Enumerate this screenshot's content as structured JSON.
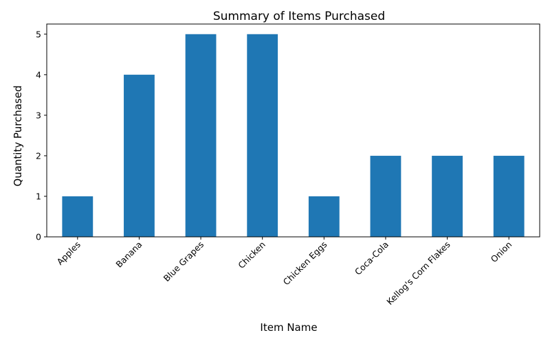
{
  "chart_data": {
    "type": "bar",
    "title": "Summary of Items Purchased",
    "xlabel": "Item Name",
    "ylabel": "Quantity Purchased",
    "categories": [
      "Apples",
      "Banana",
      "Blue Grapes",
      "Chicken",
      "Chicken Eggs",
      "Coca-Cola",
      "Kellog's Corn Flakes",
      "Onion"
    ],
    "values": [
      1,
      4,
      5,
      5,
      1,
      2,
      2,
      2
    ],
    "ylim": [
      0,
      5.25
    ],
    "yticks": [
      0,
      1,
      2,
      3,
      4,
      5
    ],
    "grid": false,
    "legend": "none",
    "bar_color": "#1f77b4"
  }
}
